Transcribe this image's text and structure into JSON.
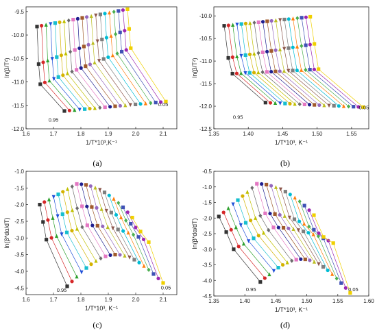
{
  "colors": [
    "#333333",
    "#d62728",
    "#2ca02c",
    "#1f4fd8",
    "#17becf",
    "#d4b200",
    "#c0c000",
    "#6b6b6b",
    "#e377c2",
    "#1f1f8f",
    "#a05a2c",
    "#9467bd",
    "#bcbd22",
    "#8c564b",
    "#7f7f7f",
    "#00bcd4",
    "#ff7f0e",
    "#4caf50",
    "#3f51b5",
    "#9c27b0",
    "#f0d000"
  ],
  "chart_data": [
    {
      "panel": "(a)",
      "type": "scatter",
      "xlabel": "1/T*10³,K⁻¹",
      "ylabel": "ln(β/T²)",
      "xlim": [
        1.6,
        2.15
      ],
      "ylim": [
        -12.0,
        -9.4
      ],
      "xticks": [
        "1.6",
        "1.7",
        "1.8",
        "1.9",
        "2.0",
        "2.1"
      ],
      "xtick_vals": [
        1.6,
        1.7,
        1.8,
        1.9,
        2.0,
        2.1
      ],
      "yticks": [
        "-12.0",
        "-11.5",
        "-11.0",
        "-10.5",
        "-10.0",
        "-9.5"
      ],
      "ytick_vals": [
        -12.0,
        -11.5,
        -11.0,
        -10.5,
        -10.0,
        -9.5
      ],
      "annotations": [
        {
          "text": "0.95",
          "x": 1.7,
          "y": -11.85
        },
        {
          "text": "0.05",
          "x": 2.1,
          "y": -11.52
        }
      ],
      "series_start": {
        "x": 1.64,
        "y": [
          -9.82,
          -10.62,
          -11.05,
          -11.62
        ],
        "x_last": 1.74
      },
      "series_end": {
        "x": 1.97,
        "y": [
          -9.45,
          -9.87,
          -10.28,
          -10.82
        ],
        "x_last": 2.11,
        "y_last": -11.42
      },
      "levels": 21
    },
    {
      "panel": "(b)",
      "type": "scatter",
      "xlabel": "1/T*10³, K⁻¹",
      "ylabel": "ln(β/T²)",
      "xlim": [
        1.35,
        1.575
      ],
      "ylim": [
        -12.5,
        -9.8
      ],
      "xticks": [
        "1.35",
        "1.40",
        "1.45",
        "1.50",
        "1.55"
      ],
      "xtick_vals": [
        1.35,
        1.4,
        1.45,
        1.5,
        1.55
      ],
      "yticks": [
        "-12.5",
        "-12.0",
        "-11.5",
        "-11.0",
        "-10.5",
        "-10.0"
      ],
      "ytick_vals": [
        -12.5,
        -12.0,
        -11.5,
        -11.0,
        -10.5,
        -10.0
      ],
      "annotations": [
        {
          "text": "0.95",
          "x": 1.385,
          "y": -12.28
        },
        {
          "text": "0.05",
          "x": 1.568,
          "y": -12.07
        }
      ],
      "series_start": {
        "x": 1.365,
        "y": [
          -10.22,
          -10.93,
          -11.28,
          -11.92
        ],
        "x_last": 1.425
      },
      "series_end": {
        "x": 1.49,
        "y": [
          -10.02,
          -10.62,
          -11.18,
          -11.62
        ],
        "x_last": 1.567,
        "y_last": -12.02
      },
      "levels": 21
    },
    {
      "panel": "(c)",
      "type": "scatter",
      "xlabel": "1/T*10³, K⁻¹",
      "ylabel": "ln(β*dα/dT)",
      "xlim": [
        1.6,
        2.15
      ],
      "ylim": [
        -4.7,
        -1.0
      ],
      "xticks": [
        "1.6",
        "1.7",
        "1.8",
        "1.9",
        "2.0",
        "2.1"
      ],
      "xtick_vals": [
        1.6,
        1.7,
        1.8,
        1.9,
        2.0,
        2.1
      ],
      "yticks": [
        "-4.5",
        "-4.0",
        "-3.5",
        "-3.0",
        "-2.5",
        "-2.0",
        "-1.5",
        "-1.0"
      ],
      "ytick_vals": [
        -4.5,
        -4.0,
        -3.5,
        -3.0,
        -2.5,
        -2.0,
        -1.5,
        -1.0
      ],
      "annotations": [
        {
          "text": "0.95",
          "x": 1.73,
          "y": -4.62
        },
        {
          "text": "0.05",
          "x": 2.11,
          "y": -4.55
        }
      ],
      "series_start": {
        "x": 1.65,
        "y": [
          -2.0,
          -2.52,
          -3.05,
          -4.45
        ],
        "x_last": 1.75
      },
      "peak": {
        "x": 1.85,
        "y": [
          -1.38,
          -2.05,
          -2.62,
          -3.0
        ]
      },
      "series_end": {
        "x_last": 2.1,
        "y_last": -4.35
      },
      "levels": 21
    },
    {
      "panel": "(d)",
      "type": "scatter",
      "xlabel": "1/T*10³, K⁻¹",
      "ylabel": "ln(β*dα/dT)",
      "xlim": [
        1.35,
        1.6
      ],
      "ylim": [
        -4.5,
        -0.5
      ],
      "xticks": [
        "1.35",
        "1.40",
        "1.45",
        "1.50",
        "1.55",
        "1.60"
      ],
      "xtick_vals": [
        1.35,
        1.4,
        1.45,
        1.5,
        1.55,
        1.6
      ],
      "yticks": [
        "-4.5",
        "-4.0",
        "-3.5",
        "-3.0",
        "-2.5",
        "-2.0",
        "-1.5",
        "-1.0",
        "-0.5"
      ],
      "ytick_vals": [
        -4.5,
        -4.0,
        -3.5,
        -3.0,
        -2.5,
        -2.0,
        -1.5,
        -1.0,
        -0.5
      ],
      "annotations": [
        {
          "text": "0.95",
          "x": 1.41,
          "y": -4.35
        },
        {
          "text": "0.05",
          "x": 1.575,
          "y": -4.35
        }
      ],
      "series_start": {
        "x": 1.358,
        "y": [
          -1.95,
          -2.45,
          -3.0,
          -4.05
        ],
        "x_last": 1.425
      },
      "peak": {
        "x": 1.44,
        "y": [
          -0.9,
          -1.85,
          -2.3,
          -2.9
        ]
      },
      "series_end": {
        "x_last": 1.57,
        "y_last": -4.4
      },
      "levels": 21
    }
  ]
}
